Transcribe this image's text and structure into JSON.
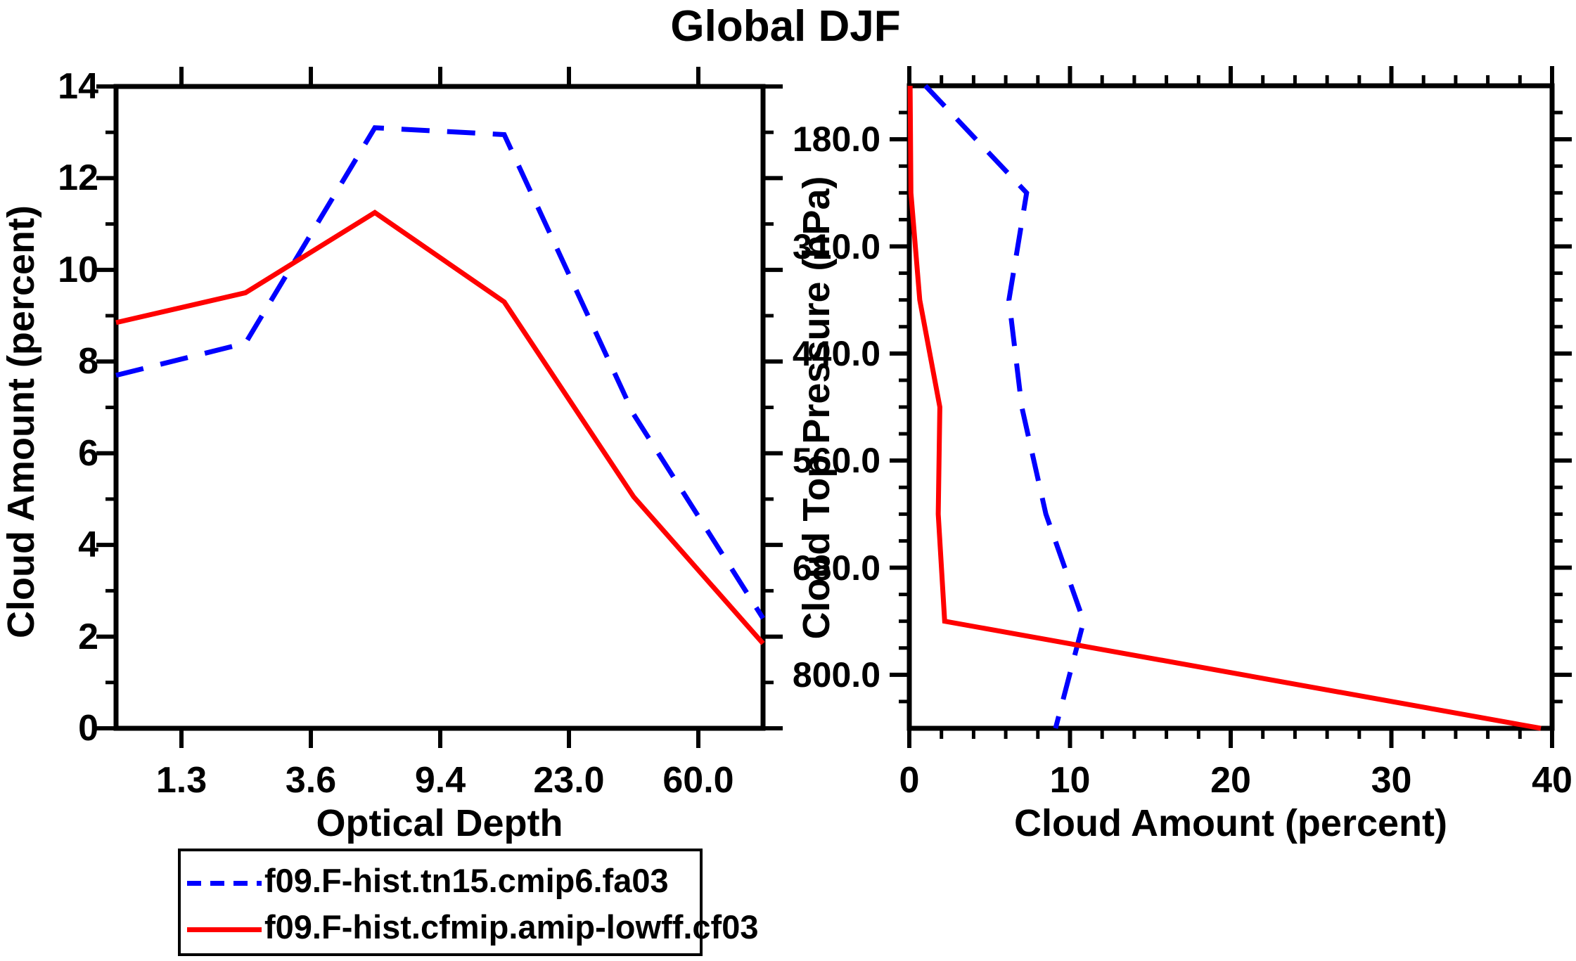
{
  "title": "Global DJF",
  "chart_data": [
    {
      "type": "line",
      "panel": "left",
      "xlabel": "Optical Depth",
      "ylabel": "Cloud Amount (percent)",
      "x_tick_labels": [
        "1.3",
        "3.6",
        "9.4",
        "23.0",
        "60.0"
      ],
      "x_axis_note": "6 data points lie at optical-depth bin centers; ticks mark the 5 bin boundaries",
      "y_tick_labels": [
        "0",
        "2",
        "4",
        "6",
        "8",
        "10",
        "12",
        "14"
      ],
      "y_ticks": [
        0,
        2,
        4,
        6,
        8,
        10,
        12,
        14
      ],
      "ylim": [
        0,
        14
      ],
      "grid": "off",
      "series": [
        {
          "name": "f09.F-hist.tn15.cmip6.fa03",
          "color": "#0000ff",
          "style": "dashed",
          "values": [
            7.7,
            8.4,
            13.1,
            12.95,
            6.85,
            2.4
          ]
        },
        {
          "name": "f09.F-hist.cfmip.amip-lowff.cf03",
          "color": "#ff0000",
          "style": "solid",
          "values": [
            8.85,
            9.5,
            11.25,
            9.3,
            5.05,
            1.85
          ]
        }
      ]
    },
    {
      "type": "line",
      "panel": "right",
      "xlabel": "Cloud Amount (percent)",
      "ylabel": "Cloud Top Pressure (hPa)",
      "x_tick_labels": [
        "0",
        "10",
        "20",
        "30",
        "40"
      ],
      "x_ticks": [
        0,
        10,
        20,
        30,
        40
      ],
      "xlim": [
        0,
        40
      ],
      "y_tick_labels": [
        "180.0",
        "310.0",
        "440.0",
        "560.0",
        "680.0",
        "800.0"
      ],
      "y_axis_note": "7 data points lie at pressure bin centers; ticks mark the 6 bin boundaries",
      "pressure_bin_centers_hpa": [
        105,
        245,
        375,
        500,
        620,
        740,
        900
      ],
      "grid": "off",
      "series": [
        {
          "name": "f09.F-hist.tn15.cmip6.fa03",
          "color": "#0000ff",
          "style": "dashed",
          "values": [
            1.0,
            7.3,
            6.2,
            7.0,
            8.5,
            10.85,
            9.1
          ]
        },
        {
          "name": "f09.F-hist.cfmip.amip-lowff.cf03",
          "color": "#ff0000",
          "style": "solid",
          "values": [
            0.05,
            0.1,
            0.65,
            1.9,
            1.8,
            2.2,
            39.3
          ]
        }
      ]
    }
  ],
  "legend": {
    "position": "bottom-left",
    "entries": [
      {
        "label": "f09.F-hist.tn15.cmip6.fa03",
        "color": "#0000ff",
        "style": "dashed"
      },
      {
        "label": "f09.F-hist.cfmip.amip-lowff.cf03",
        "color": "#ff0000",
        "style": "solid"
      }
    ]
  },
  "colors": {
    "series_blue": "#0000ff",
    "series_red": "#ff0000",
    "axis": "#000000",
    "background": "#ffffff"
  }
}
